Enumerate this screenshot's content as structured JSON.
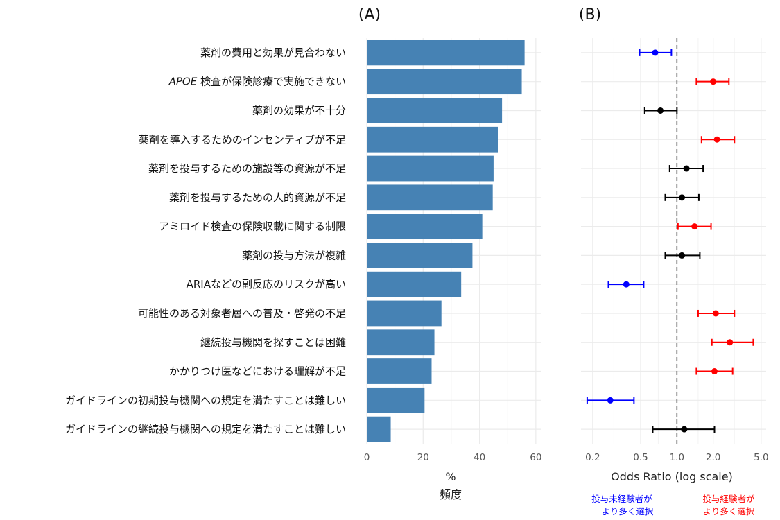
{
  "panels": {
    "a_title": "(A)",
    "b_title": "(B)"
  },
  "colors": {
    "bar": "#4682b4",
    "blue": "#0000ff",
    "red": "#ff0000",
    "black": "#000000",
    "grid": "#ebebeb",
    "reference_line": "#555555"
  },
  "chart_data": [
    {
      "type": "bar",
      "orientation": "horizontal",
      "title": "(A)",
      "xlabel": "%",
      "xlabel_sub": "頻度",
      "xlim": [
        0,
        62
      ],
      "xticks": [
        0,
        20,
        40,
        60
      ],
      "grid": true,
      "categories": [
        "薬剤の費用と効果が見合わない",
        "APOE 検査が保険診療で実施できない",
        "薬剤の効果が不十分",
        "薬剤を導入するためのインセンティブが不足",
        "薬剤を投与するための施設等の資源が不足",
        "薬剤を投与するための人的資源が不足",
        "アミロイド検査の保険収載に関する制限",
        "薬剤の投与方法が複雑",
        "ARIAなどの副反応のリスクが高い",
        "可能性のある対象者層への普及・啓発の不足",
        "継続投与機関を探すことは困難",
        "かかりつけ医などにおける理解が不足",
        "ガイドラインの初期投与機関への規定を満たすことは難しい",
        "ガイドラインの継続投与機関への規定を満たすことは難しい"
      ],
      "values": [
        56,
        55,
        48,
        46.5,
        45,
        44.7,
        41,
        37.5,
        33.5,
        26.5,
        24,
        23,
        20.5,
        8.5
      ]
    },
    {
      "type": "scatter",
      "subtype": "forest",
      "title": "(B)",
      "xlabel": "Odds Ratio (log scale)",
      "xscale": "log",
      "xlim": [
        0.16,
        5.5
      ],
      "xticks": [
        0.2,
        0.5,
        1.0,
        2.0,
        5.0
      ],
      "xtick_labels": [
        "0.2",
        "0.5",
        "1.0",
        "2.0",
        "5.0"
      ],
      "reference_line": 1.0,
      "grid": true,
      "points": [
        {
          "or": 0.66,
          "lo": 0.49,
          "hi": 0.9,
          "color": "blue"
        },
        {
          "or": 2.0,
          "lo": 1.45,
          "hi": 2.7,
          "color": "red"
        },
        {
          "or": 0.73,
          "lo": 0.54,
          "hi": 1.0,
          "color": "black"
        },
        {
          "or": 2.15,
          "lo": 1.6,
          "hi": 3.0,
          "color": "red"
        },
        {
          "or": 1.2,
          "lo": 0.87,
          "hi": 1.65,
          "color": "black"
        },
        {
          "or": 1.1,
          "lo": 0.8,
          "hi": 1.52,
          "color": "black"
        },
        {
          "or": 1.4,
          "lo": 1.02,
          "hi": 1.92,
          "color": "red"
        },
        {
          "or": 1.1,
          "lo": 0.8,
          "hi": 1.55,
          "color": "black"
        },
        {
          "or": 0.38,
          "lo": 0.27,
          "hi": 0.53,
          "color": "blue"
        },
        {
          "or": 2.1,
          "lo": 1.5,
          "hi": 3.0,
          "color": "red"
        },
        {
          "or": 2.75,
          "lo": 1.95,
          "hi": 4.3,
          "color": "red"
        },
        {
          "or": 2.05,
          "lo": 1.45,
          "hi": 2.9,
          "color": "red"
        },
        {
          "or": 0.28,
          "lo": 0.18,
          "hi": 0.44,
          "color": "blue"
        },
        {
          "or": 1.15,
          "lo": 0.63,
          "hi": 2.05,
          "color": "black"
        }
      ]
    }
  ],
  "notes": {
    "left_line1": "投与未経験者が",
    "left_line2": "より多く選択",
    "right_line1": "投与経験者が",
    "right_line2": "より多く選択"
  }
}
